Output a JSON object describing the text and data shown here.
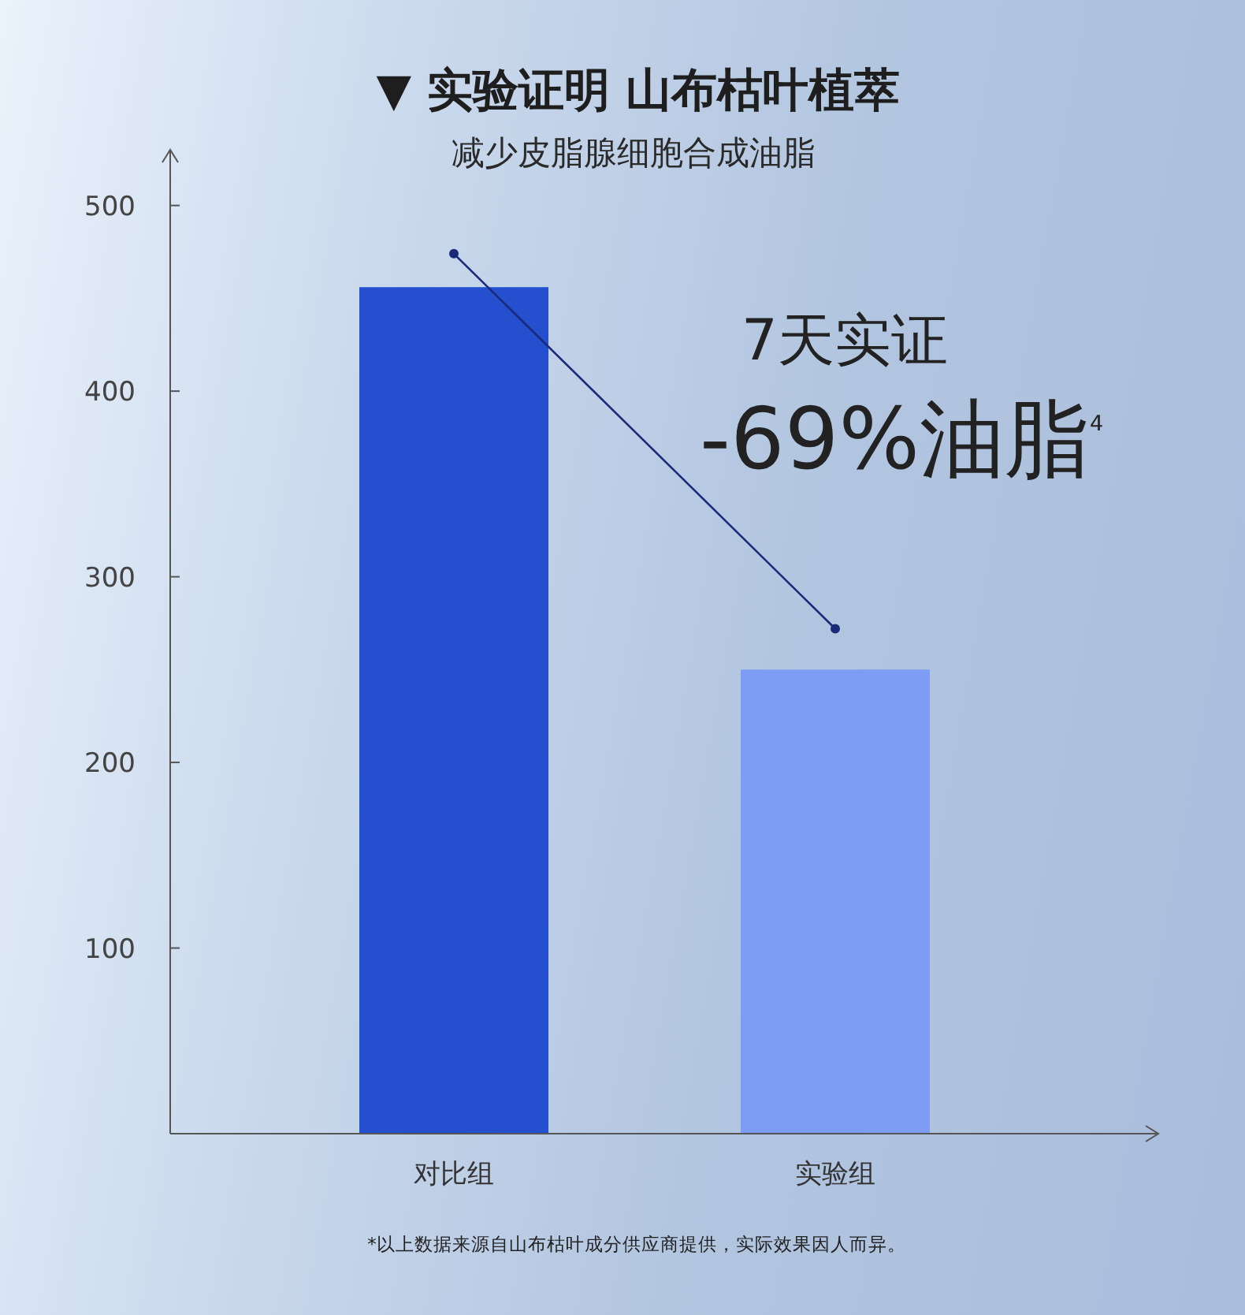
{
  "chart_data": {
    "type": "bar",
    "title": "▼ 实验证明 山布枯叶植萃",
    "subtitle": "减少皮脂腺细胞合成油脂",
    "categories": [
      "对比组",
      "实验组"
    ],
    "series": [
      {
        "colors": [
          "#2450d0",
          "#7f9cf5"
        ],
        "values": [
          456,
          250
        ]
      },
      {
        "type": "line",
        "color": "#1a2a7a",
        "marker": "circle",
        "values": [
          474,
          272
        ]
      }
    ],
    "ylim": [
      0,
      530
    ],
    "yticks": [
      100,
      200,
      300,
      400,
      500
    ],
    "grid": false,
    "annotations": [
      "7天实证",
      "-69%油脂$^{4}$",
      "*以上数据来源自山布枯叶成分供应商提供，实际效果因人而异。"
    ]
  }
}
